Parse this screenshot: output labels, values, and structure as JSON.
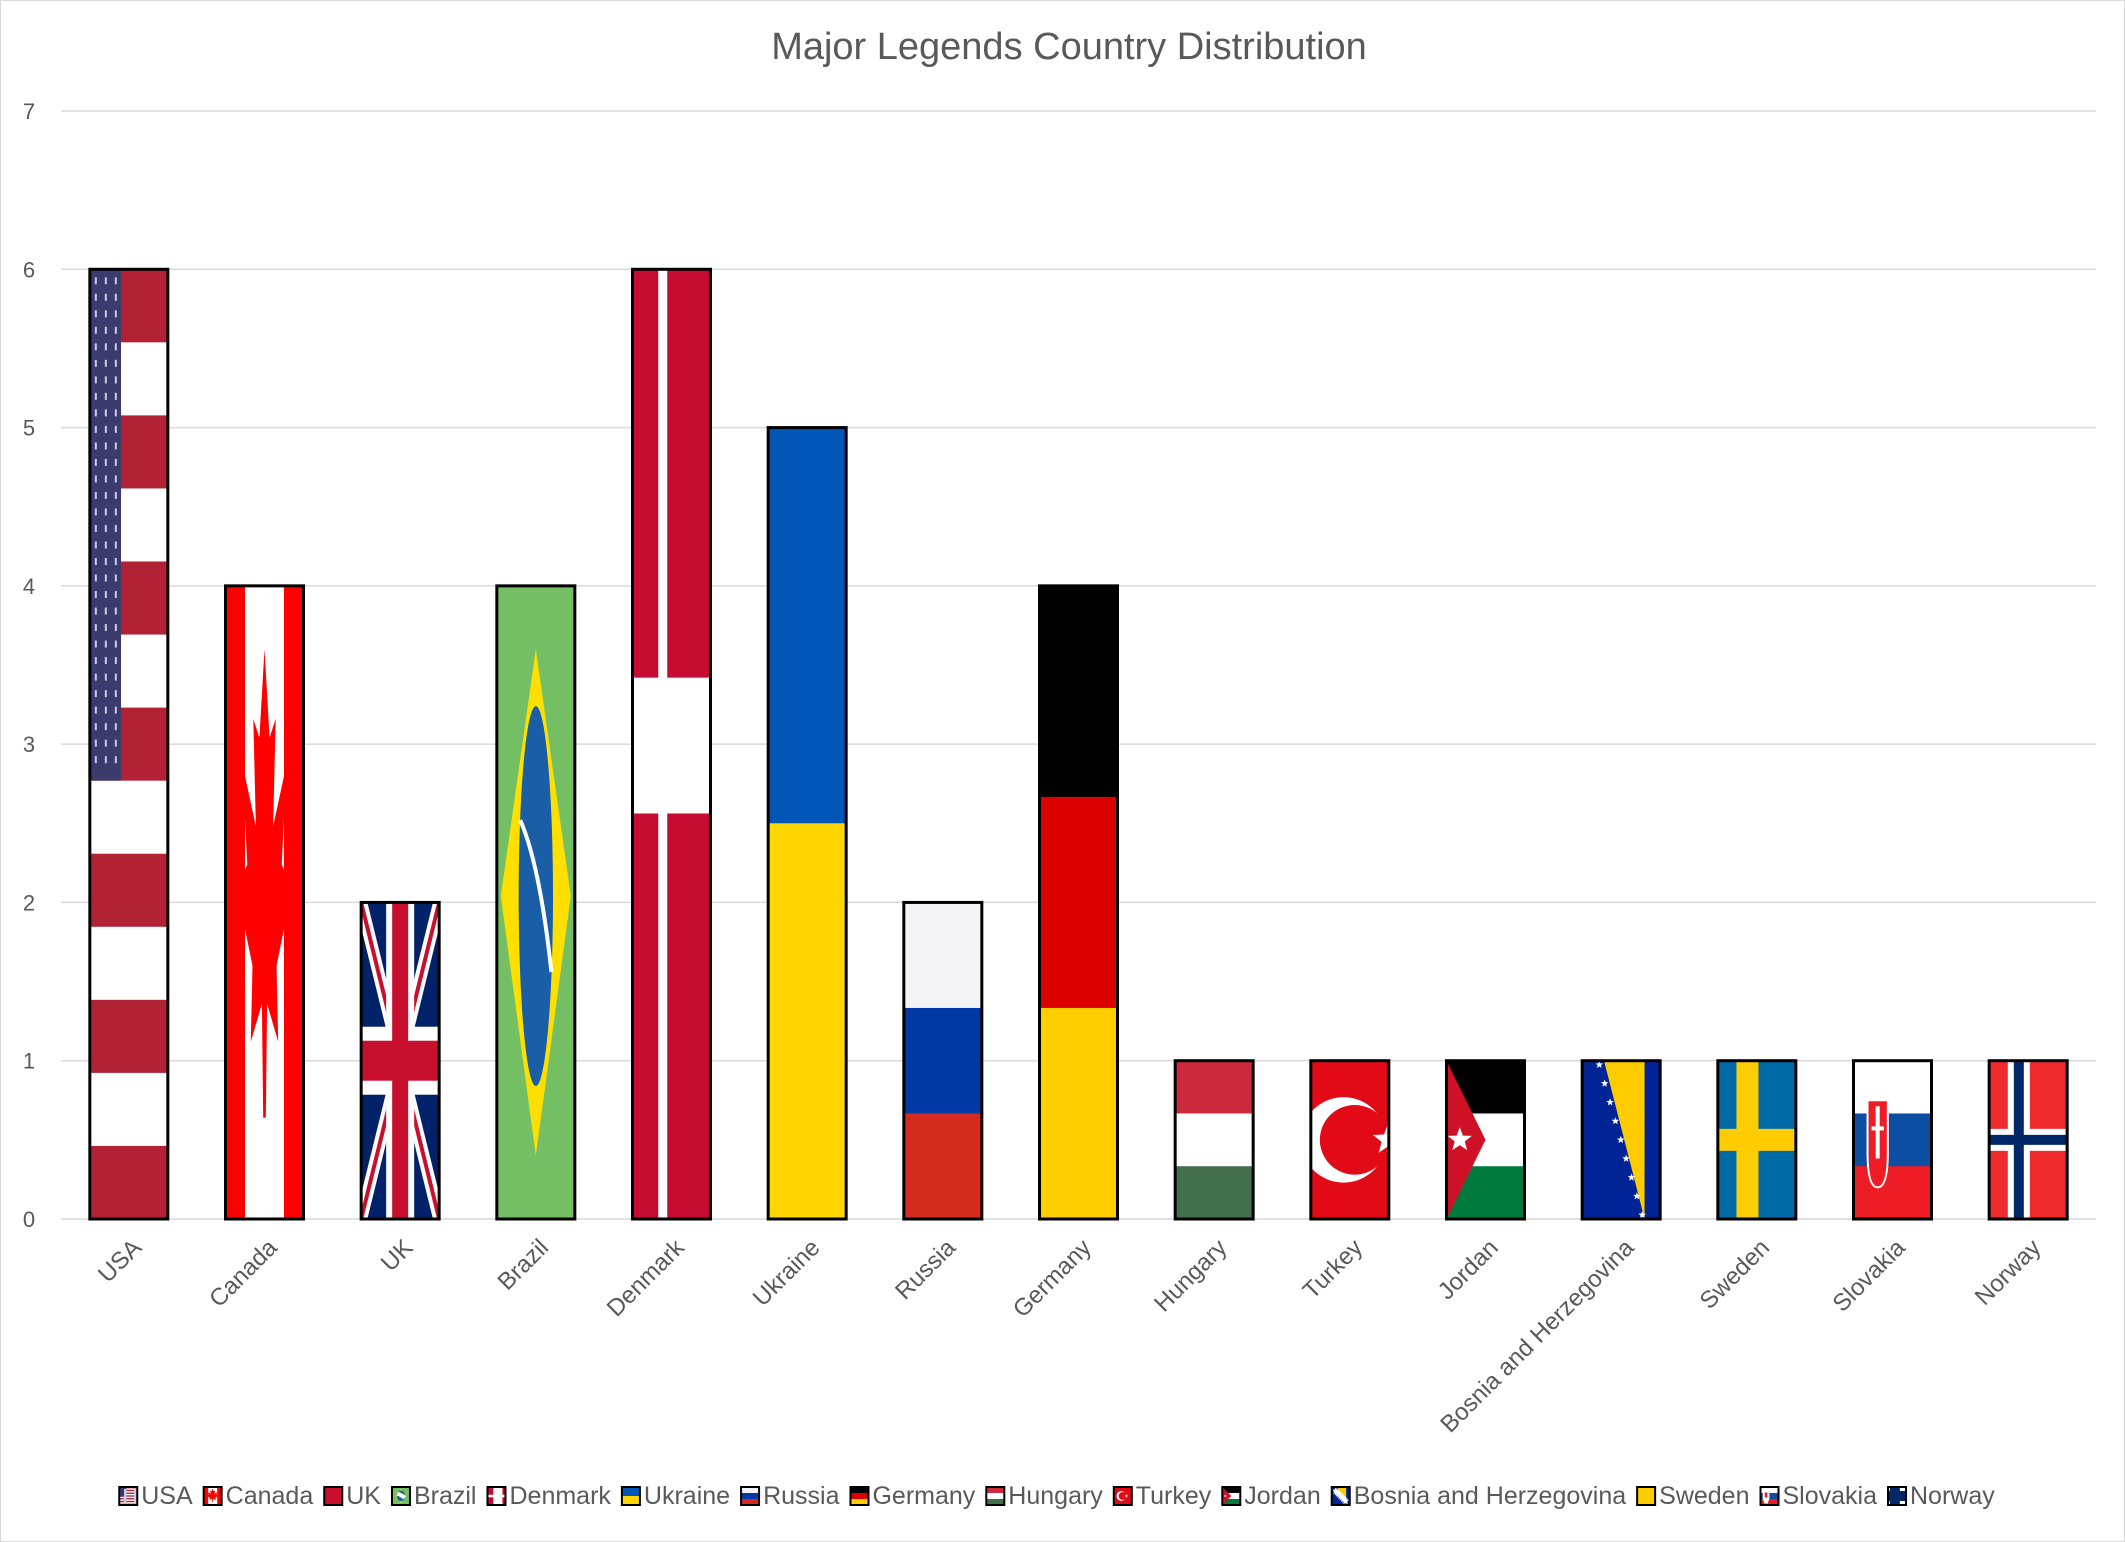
{
  "chart_data": {
    "type": "bar",
    "title": "Major Legends Country Distribution",
    "xlabel": "",
    "ylabel": "",
    "ylim": [
      0,
      7
    ],
    "yticks": [
      0,
      1,
      2,
      3,
      4,
      5,
      6,
      7
    ],
    "grid": true,
    "legend_position": "bottom",
    "categories": [
      "USA",
      "Canada",
      "UK",
      "Brazil",
      "Denmark",
      "Ukraine",
      "Russia",
      "Germany",
      "Hungary",
      "Turkey",
      "Jordan",
      "Bosnia and Herzegovina",
      "Sweden",
      "Slovakia",
      "Norway"
    ],
    "values": [
      6,
      4,
      2,
      4,
      6,
      5,
      2,
      4,
      1,
      1,
      1,
      1,
      1,
      1,
      1
    ],
    "bar_fill": "country flag images",
    "colors": {
      "usa_red": "#b22234",
      "usa_blue": "#3c3b6e",
      "canada_red": "#ff0000",
      "uk_blue": "#012169",
      "uk_red": "#c8102e",
      "brazil_green": "#74bf64",
      "brazil_yellow": "#fedf00",
      "brazil_blue": "#002776",
      "denmark_red": "#c60c30",
      "ukraine_blue": "#0057b7",
      "ukraine_yellow": "#ffd700",
      "russia_blue": "#0039a6",
      "russia_red": "#d52b1e",
      "germany_black": "#000000",
      "germany_red": "#dd0000",
      "germany_gold": "#ffce00",
      "hungary_red": "#cd2a3e",
      "hungary_green": "#436f4d",
      "turkey_red": "#e30a17",
      "jordan_green": "#007a3d",
      "jordan_red": "#ce1126",
      "bosnia_blue": "#002395",
      "bosnia_yellow": "#fecb00",
      "sweden_blue": "#006aa7",
      "sweden_yellow": "#fecc00",
      "slovakia_blue": "#0b4ea2",
      "slovakia_red": "#ee1c25",
      "norway_red": "#ef2b2d",
      "norway_blue": "#002868"
    }
  }
}
